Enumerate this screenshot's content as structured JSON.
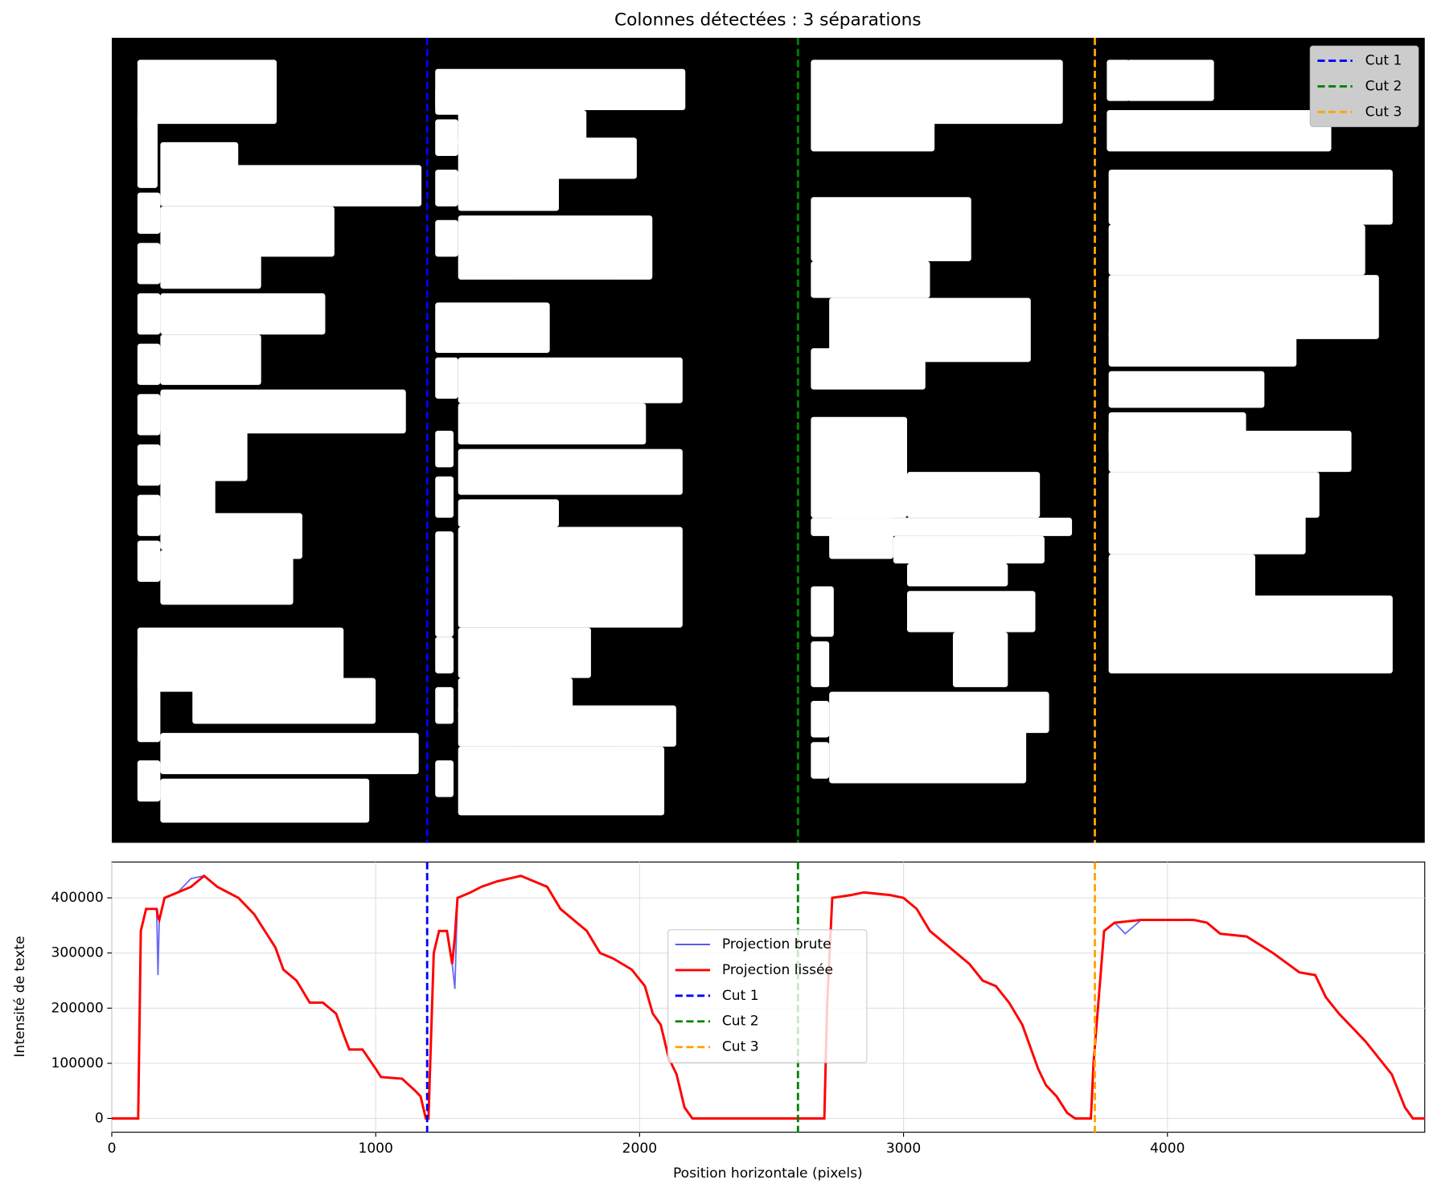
{
  "chart_data": {
    "type": "line",
    "title": "Colonnes détectées : 3 séparations",
    "xlabel": "Position horizontale (pixels)",
    "ylabel": "Intensité de texte",
    "xlim": [
      0,
      4975
    ],
    "ylim": [
      -25000,
      465000
    ],
    "xticks": [
      0,
      1000,
      2000,
      3000,
      4000
    ],
    "yticks": [
      0,
      100000,
      200000,
      300000,
      400000
    ],
    "grid": true,
    "legend": "center",
    "x": [
      0,
      80,
      100,
      110,
      130,
      170,
      175,
      180,
      200,
      250,
      300,
      350,
      400,
      480,
      540,
      580,
      620,
      650,
      700,
      750,
      800,
      850,
      880,
      900,
      950,
      1000,
      1020,
      1100,
      1150,
      1170,
      1190,
      1200,
      1220,
      1240,
      1270,
      1290,
      1300,
      1310,
      1360,
      1400,
      1460,
      1550,
      1600,
      1650,
      1700,
      1800,
      1850,
      1900,
      1970,
      2020,
      2050,
      2080,
      2110,
      2140,
      2170,
      2200,
      2700,
      2710,
      2730,
      2800,
      2850,
      2950,
      3000,
      3050,
      3100,
      3200,
      3250,
      3300,
      3350,
      3400,
      3450,
      3480,
      3510,
      3540,
      3580,
      3620,
      3650,
      3710,
      3720,
      3760,
      3800,
      3840,
      3900,
      4000,
      4100,
      4150,
      4200,
      4300,
      4400,
      4500,
      4560,
      4600,
      4650,
      4700,
      4750,
      4800,
      4850,
      4900,
      4930,
      4975
    ],
    "series": [
      {
        "name": "Projection brute",
        "color": "#4f4ff0",
        "values": [
          0,
          0,
          0,
          340000,
          380000,
          380000,
          260000,
          360000,
          400000,
          410000,
          435000,
          440000,
          420000,
          400000,
          370000,
          340000,
          310000,
          270000,
          250000,
          210000,
          210000,
          190000,
          150000,
          125000,
          125000,
          90000,
          75000,
          72000,
          50000,
          40000,
          0,
          0,
          300000,
          340000,
          340000,
          280000,
          235000,
          400000,
          410000,
          420000,
          430000,
          440000,
          430000,
          420000,
          380000,
          340000,
          300000,
          290000,
          270000,
          240000,
          190000,
          170000,
          110000,
          80000,
          20000,
          0,
          0,
          200000,
          400000,
          405000,
          410000,
          405000,
          400000,
          380000,
          340000,
          300000,
          280000,
          250000,
          240000,
          210000,
          170000,
          130000,
          90000,
          60000,
          40000,
          10000,
          0,
          0,
          100000,
          340000,
          355000,
          335000,
          360000,
          360000,
          360000,
          355000,
          335000,
          330000,
          300000,
          265000,
          260000,
          220000,
          190000,
          165000,
          140000,
          110000,
          80000,
          20000,
          0,
          0
        ]
      },
      {
        "name": "Projection lissée",
        "color": "#ff0000",
        "values": [
          0,
          0,
          0,
          340000,
          380000,
          380000,
          365000,
          360000,
          400000,
          410000,
          420000,
          440000,
          420000,
          400000,
          370000,
          340000,
          310000,
          270000,
          250000,
          210000,
          210000,
          190000,
          150000,
          125000,
          125000,
          90000,
          75000,
          72000,
          50000,
          40000,
          0,
          0,
          300000,
          340000,
          340000,
          280000,
          330000,
          400000,
          410000,
          420000,
          430000,
          440000,
          430000,
          420000,
          380000,
          340000,
          300000,
          290000,
          270000,
          240000,
          190000,
          170000,
          110000,
          80000,
          20000,
          0,
          0,
          200000,
          400000,
          405000,
          410000,
          405000,
          400000,
          380000,
          340000,
          300000,
          280000,
          250000,
          240000,
          210000,
          170000,
          130000,
          90000,
          60000,
          40000,
          10000,
          0,
          0,
          100000,
          340000,
          355000,
          357000,
          360000,
          360000,
          360000,
          355000,
          335000,
          330000,
          300000,
          265000,
          260000,
          220000,
          190000,
          165000,
          140000,
          110000,
          80000,
          20000,
          0,
          0
        ]
      }
    ],
    "cuts": [
      {
        "name": "Cut 1",
        "color": "#0000ff",
        "x": 1195
      },
      {
        "name": "Cut 2",
        "color": "#008000",
        "x": 2600
      },
      {
        "name": "Cut 3",
        "color": "#ffa500",
        "x": 3725
      }
    ]
  }
}
